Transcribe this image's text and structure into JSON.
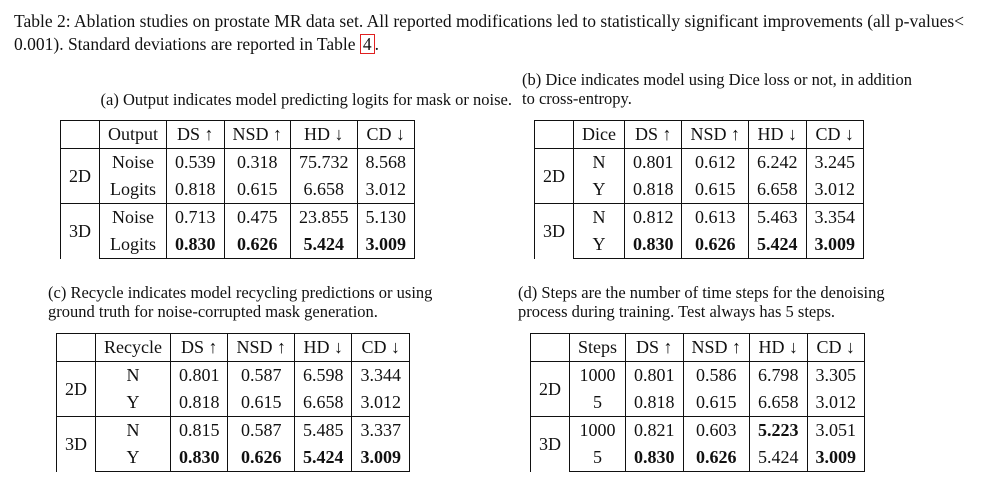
{
  "caption": {
    "prefix": "Table 2: Ablation studies on prostate MR data set. All reported modifications led to statistically significant improvements (all p-values< 0.001). Standard deviations are reported in Table ",
    "ref": "4",
    "suffix": "."
  },
  "tables": [
    {
      "caption": "(a) Output indicates model predicting logits for mask or noise.",
      "headers": [
        "Output",
        "DS ↑",
        "NSD ↑",
        "HD ↓",
        "CD ↓"
      ],
      "groups": [
        {
          "label": "2D",
          "rows": [
            {
              "vals": [
                "Noise",
                "0.539",
                "0.318",
                "75.732",
                "8.568"
              ],
              "bold": []
            },
            {
              "vals": [
                "Logits",
                "0.818",
                "0.615",
                "6.658",
                "3.012"
              ],
              "bold": []
            }
          ]
        },
        {
          "label": "3D",
          "rows": [
            {
              "vals": [
                "Noise",
                "0.713",
                "0.475",
                "23.855",
                "5.130"
              ],
              "bold": []
            },
            {
              "vals": [
                "Logits",
                "0.830",
                "0.626",
                "5.424",
                "3.009"
              ],
              "bold": [
                1,
                2,
                3,
                4
              ]
            }
          ]
        }
      ]
    },
    {
      "caption": "(b) Dice indicates model using Dice loss or not, in addition\nto cross-entropy.",
      "headers": [
        "Dice",
        "DS ↑",
        "NSD ↑",
        "HD ↓",
        "CD ↓"
      ],
      "groups": [
        {
          "label": "2D",
          "rows": [
            {
              "vals": [
                "N",
                "0.801",
                "0.612",
                "6.242",
                "3.245"
              ],
              "bold": []
            },
            {
              "vals": [
                "Y",
                "0.818",
                "0.615",
                "6.658",
                "3.012"
              ],
              "bold": []
            }
          ]
        },
        {
          "label": "3D",
          "rows": [
            {
              "vals": [
                "N",
                "0.812",
                "0.613",
                "5.463",
                "3.354"
              ],
              "bold": []
            },
            {
              "vals": [
                "Y",
                "0.830",
                "0.626",
                "5.424",
                "3.009"
              ],
              "bold": [
                1,
                2,
                3,
                4
              ]
            }
          ]
        }
      ]
    },
    {
      "caption": "(c) Recycle indicates model recycling predictions or using\nground truth for noise-corrupted mask generation.",
      "headers": [
        "Recycle",
        "DS ↑",
        "NSD ↑",
        "HD ↓",
        "CD ↓"
      ],
      "groups": [
        {
          "label": "2D",
          "rows": [
            {
              "vals": [
                "N",
                "0.801",
                "0.587",
                "6.598",
                "3.344"
              ],
              "bold": []
            },
            {
              "vals": [
                "Y",
                "0.818",
                "0.615",
                "6.658",
                "3.012"
              ],
              "bold": []
            }
          ]
        },
        {
          "label": "3D",
          "rows": [
            {
              "vals": [
                "N",
                "0.815",
                "0.587",
                "5.485",
                "3.337"
              ],
              "bold": []
            },
            {
              "vals": [
                "Y",
                "0.830",
                "0.626",
                "5.424",
                "3.009"
              ],
              "bold": [
                1,
                2,
                3,
                4
              ]
            }
          ]
        }
      ]
    },
    {
      "caption": "(d) Steps are the number of time steps for the denoising\nprocess during training. Test always has 5 steps.",
      "headers": [
        "Steps",
        "DS ↑",
        "NSD ↑",
        "HD ↓",
        "CD ↓"
      ],
      "groups": [
        {
          "label": "2D",
          "rows": [
            {
              "vals": [
                "1000",
                "0.801",
                "0.586",
                "6.798",
                "3.305"
              ],
              "bold": []
            },
            {
              "vals": [
                "5",
                "0.818",
                "0.615",
                "6.658",
                "3.012"
              ],
              "bold": []
            }
          ]
        },
        {
          "label": "3D",
          "rows": [
            {
              "vals": [
                "1000",
                "0.821",
                "0.603",
                "5.223",
                "3.051"
              ],
              "bold": [
                3
              ]
            },
            {
              "vals": [
                "5",
                "0.830",
                "0.626",
                "5.424",
                "3.009"
              ],
              "bold": [
                1,
                2,
                4
              ]
            }
          ]
        }
      ]
    }
  ]
}
